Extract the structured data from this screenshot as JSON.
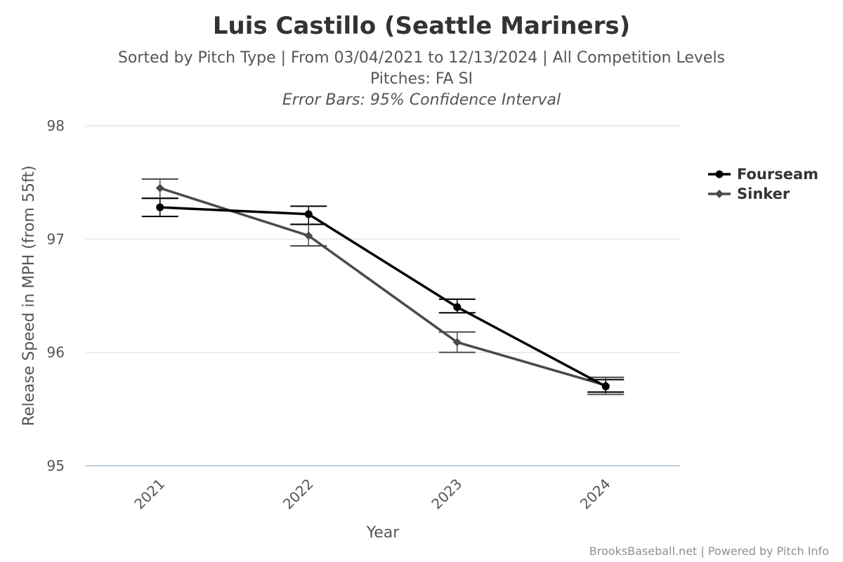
{
  "chart_data": {
    "type": "line",
    "title": "Luis Castillo (Seattle Mariners)",
    "subtitle": "Sorted by Pitch Type | From 03/04/2021 to 12/13/2024 | All Competition Levels",
    "subtitle2": "Pitches: FA SI",
    "subtitle3": "Error Bars: 95% Confidence Interval",
    "xlabel": "Year",
    "ylabel": "Release Speed in MPH (from 55ft)",
    "categories": [
      "2021",
      "2022",
      "2023",
      "2024"
    ],
    "ylim": [
      95,
      98
    ],
    "yticks": [
      "95",
      "96",
      "97",
      "98"
    ],
    "grid": true,
    "legend_position": "right",
    "series": [
      {
        "name": "Fourseam",
        "color": "#000000",
        "marker": "circle",
        "values": [
          97.28,
          97.22,
          96.4,
          95.7
        ],
        "error_low": [
          97.2,
          97.13,
          96.35,
          95.65
        ],
        "error_high": [
          97.36,
          97.29,
          96.47,
          95.76
        ]
      },
      {
        "name": "Sinker",
        "color": "#4a4a4a",
        "marker": "diamond",
        "values": [
          97.45,
          97.03,
          96.09,
          95.71
        ],
        "error_low": [
          97.36,
          96.94,
          96.0,
          95.63
        ],
        "error_high": [
          97.53,
          97.13,
          96.18,
          95.78
        ]
      }
    ]
  },
  "credit": "BrooksBaseball.net | Powered by Pitch Info"
}
